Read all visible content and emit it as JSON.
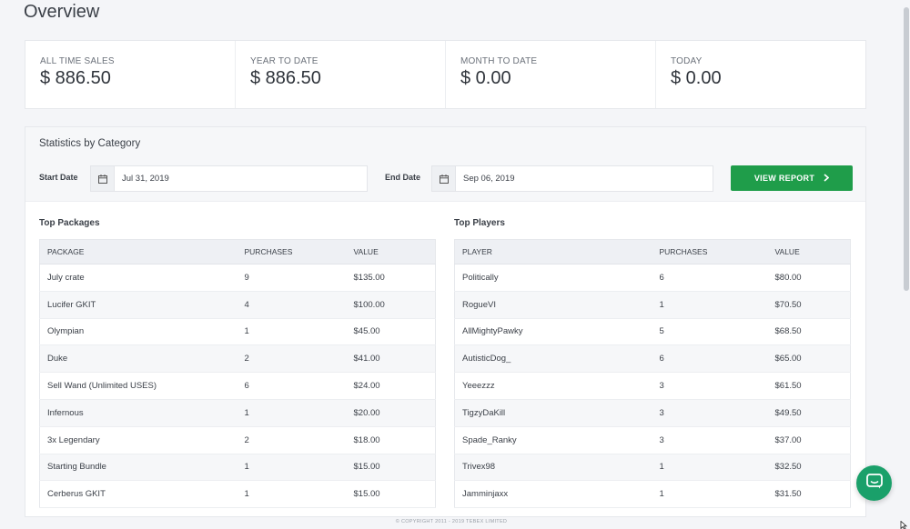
{
  "page": {
    "title": "Overview"
  },
  "stats": [
    {
      "label": "ALL TIME SALES",
      "value": "$ 886.50"
    },
    {
      "label": "YEAR TO DATE",
      "value": "$ 886.50"
    },
    {
      "label": "MONTH TO DATE",
      "value": "$ 0.00"
    },
    {
      "label": "TODAY",
      "value": "$ 0.00"
    }
  ],
  "statistics": {
    "title": "Statistics by Category",
    "start_label": "Start Date",
    "start_value": "Jul 31, 2019",
    "end_label": "End Date",
    "end_value": "Sep 06, 2019",
    "button_label": "VIEW REPORT"
  },
  "packages": {
    "title": "Top Packages",
    "columns": [
      "PACKAGE",
      "PURCHASES",
      "VALUE"
    ],
    "rows": [
      [
        "July crate",
        "9",
        "$135.00"
      ],
      [
        "Lucifer GKIT",
        "4",
        "$100.00"
      ],
      [
        "Olympian",
        "1",
        "$45.00"
      ],
      [
        "Duke",
        "2",
        "$41.00"
      ],
      [
        "Sell Wand (Unlimited USES)",
        "6",
        "$24.00"
      ],
      [
        "Infernous",
        "1",
        "$20.00"
      ],
      [
        "3x Legendary",
        "2",
        "$18.00"
      ],
      [
        "Starting Bundle",
        "1",
        "$15.00"
      ],
      [
        "Cerberus GKIT",
        "1",
        "$15.00"
      ]
    ]
  },
  "players": {
    "title": "Top Players",
    "columns": [
      "PLAYER",
      "PURCHASES",
      "VALUE"
    ],
    "rows": [
      [
        "Politically",
        "6",
        "$80.00"
      ],
      [
        "RogueVI",
        "1",
        "$70.50"
      ],
      [
        "AllMightyPawky",
        "5",
        "$68.50"
      ],
      [
        "AutisticDog_",
        "6",
        "$65.00"
      ],
      [
        "Yeeezzz",
        "3",
        "$61.50"
      ],
      [
        "TigzyDaKill",
        "3",
        "$49.50"
      ],
      [
        "Spade_Ranky",
        "3",
        "$37.00"
      ],
      [
        "Trivex98",
        "1",
        "$32.50"
      ],
      [
        "Jamminjaxx",
        "1",
        "$31.50"
      ]
    ]
  },
  "footer": {
    "copyright": "© COPYRIGHT 2011 - 2019 TEBEX LIMITED"
  },
  "icons": {
    "calendar": "calendar-icon",
    "chevron": "chevron-right-icon",
    "chat": "chat-icon"
  },
  "colors": {
    "accent": "#1f9d4a",
    "chat": "#1aa06a",
    "background": "#f4f5f8"
  }
}
